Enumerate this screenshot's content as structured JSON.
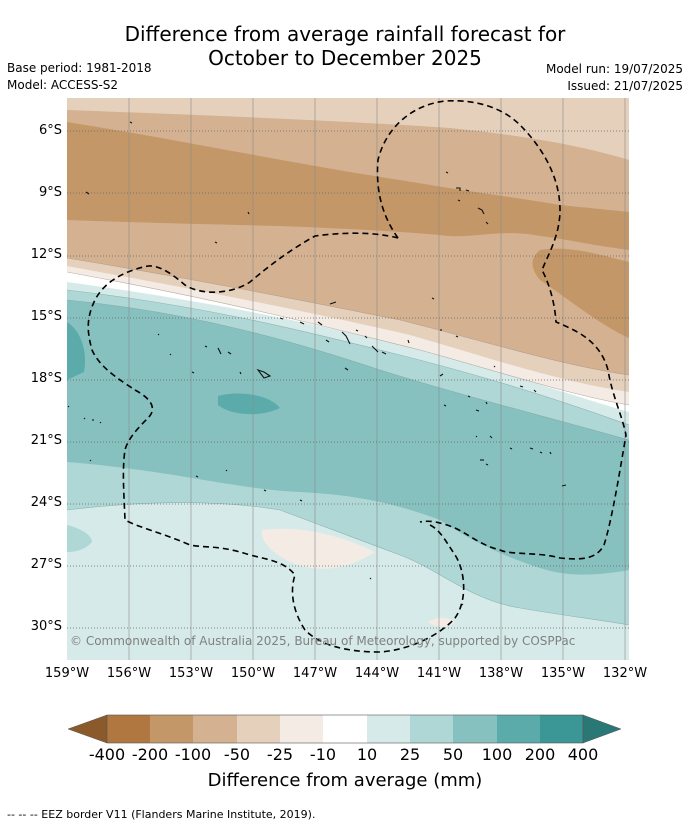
{
  "title_line1": "Difference from average rainfall forecast for",
  "title_line2": "October to December 2025",
  "meta_left": {
    "base_period": "Base period: 1981-2018",
    "model": "Model: ACCESS-S2"
  },
  "meta_right": {
    "model_run": "Model run: 19/07/2025",
    "issued": "Issued: 21/07/2025"
  },
  "map": {
    "lat_labels": [
      "6°S",
      "9°S",
      "12°S",
      "15°S",
      "18°S",
      "21°S",
      "24°S",
      "27°S",
      "30°S"
    ],
    "lon_labels": [
      "159°W",
      "156°W",
      "153°W",
      "150°W",
      "147°W",
      "144°W",
      "141°W",
      "138°W",
      "135°W",
      "132°W"
    ],
    "copyright": "© Commonwealth of Australia 2025, Bureau of Meteorology, supported by COSPPac"
  },
  "colorbar": {
    "ticks": [
      "-400",
      "-200",
      "-100",
      "-50",
      "-25",
      "-10",
      "10",
      "25",
      "50",
      "100",
      "200",
      "400"
    ],
    "colors": [
      "#8a5a2b",
      "#b07840",
      "#c49768",
      "#d4b190",
      "#e5d0bc",
      "#f3ebe4",
      "#ffffff",
      "#d6ebe9",
      "#afd7d5",
      "#86c1c0",
      "#5cabab",
      "#3a9795",
      "#2a7876"
    ],
    "label": "Difference from average (mm)"
  },
  "footnote": "-- -- -- EEZ border V11 (Flanders Marine Institute, 2019)."
}
